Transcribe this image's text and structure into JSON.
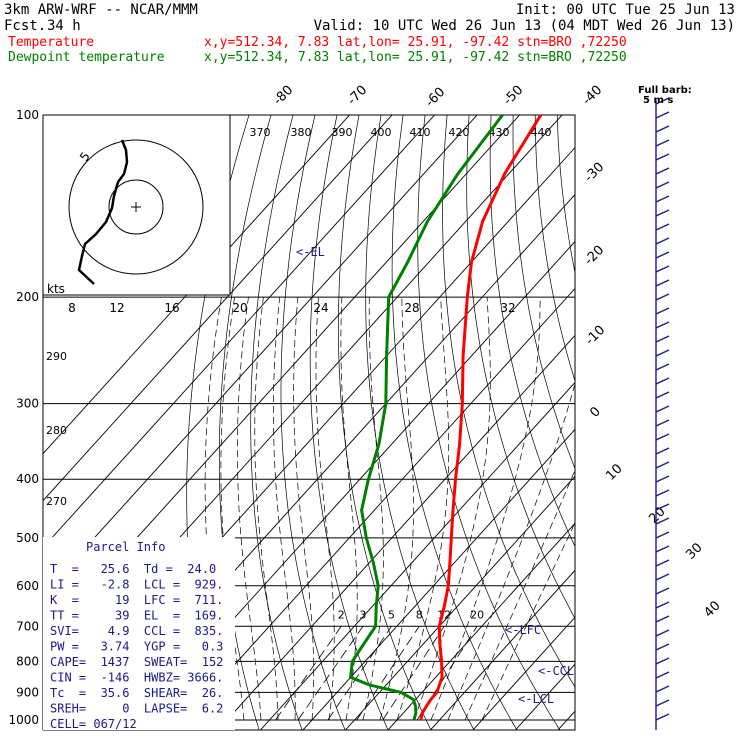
{
  "header": {
    "model": "3km ARW-WRF -- NCAR/MMM",
    "init": "Init: 00 UTC Tue 25 Jun 13",
    "fcst_label": "Fcst.",
    "fcst_value": "34 h",
    "valid": "Valid: 10 UTC Wed 26 Jun 13 (04 MDT Wed 26 Jun 13)",
    "temp_label": "Temperature",
    "temp_info": "x,y=512.34,  7.83   lat,lon= 25.91, -97.42  stn=BRO ,72250",
    "dew_label": "Dewpoint temperature",
    "dew_info": "x,y=512.34,  7.83   lat,lon= 25.91, -97.42  stn=BRO ,72250"
  },
  "barb_legend": {
    "line1": "Full barb:",
    "line2": "5 m s"
  },
  "hodograph": {
    "units_label": "kts",
    "ring_label": "5"
  },
  "annotations": {
    "el": "<-EL",
    "lfc": "<-LFC",
    "ccl": "<-CCL",
    "lcl": "<-LCL"
  },
  "parcel_info": {
    "title": "Parcel Info",
    "rows": [
      "T  =   25.6  Td =  24.0",
      "LI =   -2.8  LCL =  929.",
      "K  =     19  LFC =  711.",
      "TT =     39  EL  =  169.",
      "SVI=    4.9  CCL =  835.",
      "PW =   3.74  YGP =   0.3",
      "CAPE=  1437  SWEAT=  152",
      "CIN =  -146  HWBZ= 3666.",
      "Tc  =  35.6  SHEAR=  26.",
      "SREH=     0  LAPSE=  6.2",
      "CELL= 067/12"
    ]
  },
  "colors": {
    "temperature": "#ff0000",
    "dewpoint": "#008000",
    "parcel_text": "#1a1a8c"
  },
  "chart_data": {
    "type": "line",
    "title": "",
    "xlabel": "",
    "ylabel": "",
    "pressure_levels_hpa": [
      "100",
      "200",
      "300",
      "400",
      "500",
      "600",
      "700",
      "800",
      "900",
      "1000"
    ],
    "isotherm_labels_deg_c": [
      "-80",
      "-70",
      "-60",
      "-50",
      "-40",
      "-30",
      "-20",
      "-10",
      "0",
      "10",
      "20",
      "30",
      "40"
    ],
    "theta_e_labels_k": [
      "370",
      "380",
      "390",
      "400",
      "410",
      "420",
      "430",
      "440"
    ],
    "theta_e_side_labels_k": [
      "290",
      "280",
      "270"
    ],
    "inset_labels": [
      "8",
      "12",
      "16",
      "20",
      "24",
      "28",
      "32"
    ],
    "mixing_ratio_labels_g_kg": [
      "2",
      "3",
      "5",
      "8",
      "12",
      "20"
    ],
    "series": [
      {
        "name": "Temperature",
        "points": [
          [
            1000,
            25.6
          ],
          [
            975,
            24.5
          ],
          [
            950,
            24.0
          ],
          [
            925,
            23.6
          ],
          [
            900,
            23.5
          ],
          [
            850,
            21.5
          ],
          [
            800,
            18.0
          ],
          [
            750,
            14.0
          ],
          [
            700,
            10.0
          ],
          [
            650,
            7.0
          ],
          [
            600,
            3.5
          ],
          [
            550,
            -1.0
          ],
          [
            500,
            -6.0
          ],
          [
            450,
            -11.5
          ],
          [
            400,
            -17.5
          ],
          [
            350,
            -24.0
          ],
          [
            300,
            -32.0
          ],
          [
            250,
            -42.0
          ],
          [
            200,
            -53.5
          ],
          [
            175,
            -60.0
          ],
          [
            150,
            -66.0
          ],
          [
            125,
            -71.0
          ],
          [
            100,
            -75.0
          ]
        ]
      },
      {
        "name": "Dewpoint temperature",
        "points": [
          [
            1000,
            24.0
          ],
          [
            975,
            23.0
          ],
          [
            950,
            21.5
          ],
          [
            925,
            19.5
          ],
          [
            900,
            15.0
          ],
          [
            875,
            6.0
          ],
          [
            850,
            0.0
          ],
          [
            800,
            -3.0
          ],
          [
            750,
            -4.0
          ],
          [
            700,
            -5.0
          ],
          [
            650,
            -9.0
          ],
          [
            600,
            -13.0
          ],
          [
            550,
            -19.0
          ],
          [
            500,
            -26.0
          ],
          [
            450,
            -33.0
          ],
          [
            400,
            -38.0
          ],
          [
            350,
            -43.0
          ],
          [
            300,
            -50.0
          ],
          [
            250,
            -60.0
          ],
          [
            200,
            -72.0
          ],
          [
            175,
            -75.0
          ],
          [
            150,
            -79.0
          ],
          [
            125,
            -82.0
          ],
          [
            100,
            -84.0
          ]
        ]
      }
    ]
  }
}
